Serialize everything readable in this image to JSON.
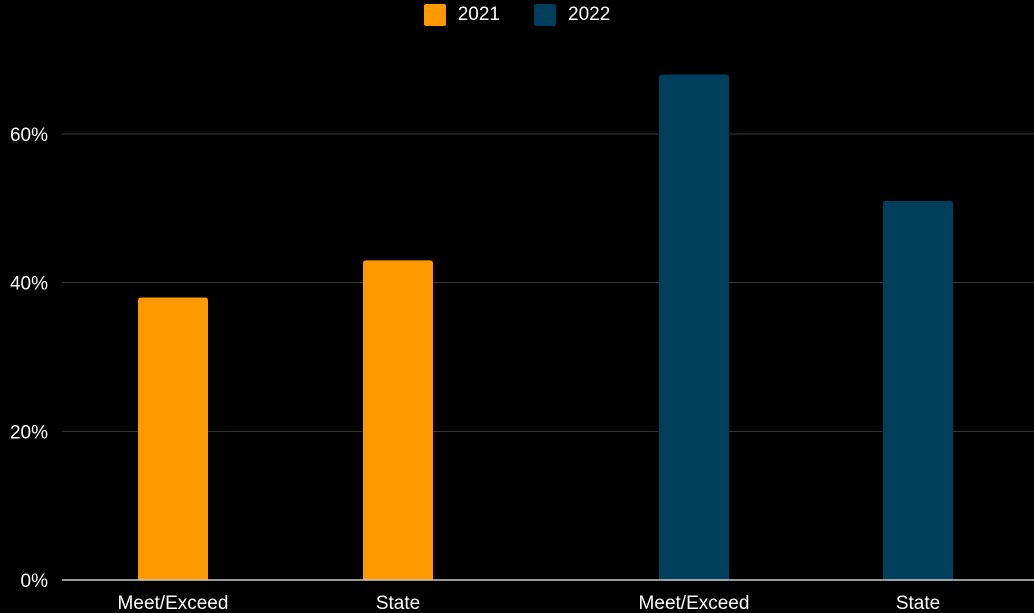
{
  "chart_data": {
    "type": "bar",
    "categories": [
      "Meet/Exceed",
      "State",
      "Meet/Exceed",
      "State"
    ],
    "series": [
      {
        "name": "2021",
        "color": "#ff9900",
        "values": [
          38,
          43,
          null,
          null
        ]
      },
      {
        "name": "2022",
        "color": "#003f5c",
        "values": [
          null,
          null,
          68,
          51
        ]
      }
    ],
    "y_ticks": [
      "0%",
      "20%",
      "40%",
      "60%"
    ],
    "ylim": [
      0,
      70
    ],
    "y_unit": "%",
    "grid": true,
    "legend_position": "top-center",
    "title": "",
    "xlabel": "",
    "ylabel": ""
  }
}
